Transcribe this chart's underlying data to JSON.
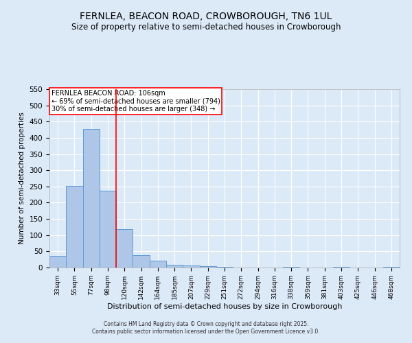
{
  "title": "FERNLEA, BEACON ROAD, CROWBOROUGH, TN6 1UL",
  "subtitle": "Size of property relative to semi-detached houses in Crowborough",
  "xlabel": "Distribution of semi-detached houses by size in Crowborough",
  "ylabel": "Number of semi-detached properties",
  "bin_labels": [
    "33sqm",
    "55sqm",
    "77sqm",
    "98sqm",
    "120sqm",
    "142sqm",
    "164sqm",
    "185sqm",
    "207sqm",
    "229sqm",
    "251sqm",
    "272sqm",
    "294sqm",
    "316sqm",
    "338sqm",
    "359sqm",
    "381sqm",
    "403sqm",
    "425sqm",
    "446sqm",
    "468sqm"
  ],
  "bin_values": [
    37,
    251,
    428,
    236,
    118,
    39,
    21,
    9,
    7,
    5,
    3,
    1,
    0,
    0,
    2,
    0,
    0,
    3,
    0,
    0,
    3
  ],
  "bar_color": "#aec6e8",
  "bar_edge_color": "#5b9bd5",
  "vline_x": 3.5,
  "vline_label": "FERNLEA BEACON ROAD: 106sqm",
  "pct_smaller": "69%",
  "n_smaller": 794,
  "pct_larger": "30%",
  "n_larger": 348,
  "annotation_box_color": "#ff0000",
  "ylim": [
    0,
    550
  ],
  "yticks": [
    0,
    50,
    100,
    150,
    200,
    250,
    300,
    350,
    400,
    450,
    500,
    550
  ],
  "background_color": "#dce9f7",
  "grid_color": "#ffffff",
  "footer_line1": "Contains HM Land Registry data © Crown copyright and database right 2025.",
  "footer_line2": "Contains public sector information licensed under the Open Government Licence v3.0."
}
